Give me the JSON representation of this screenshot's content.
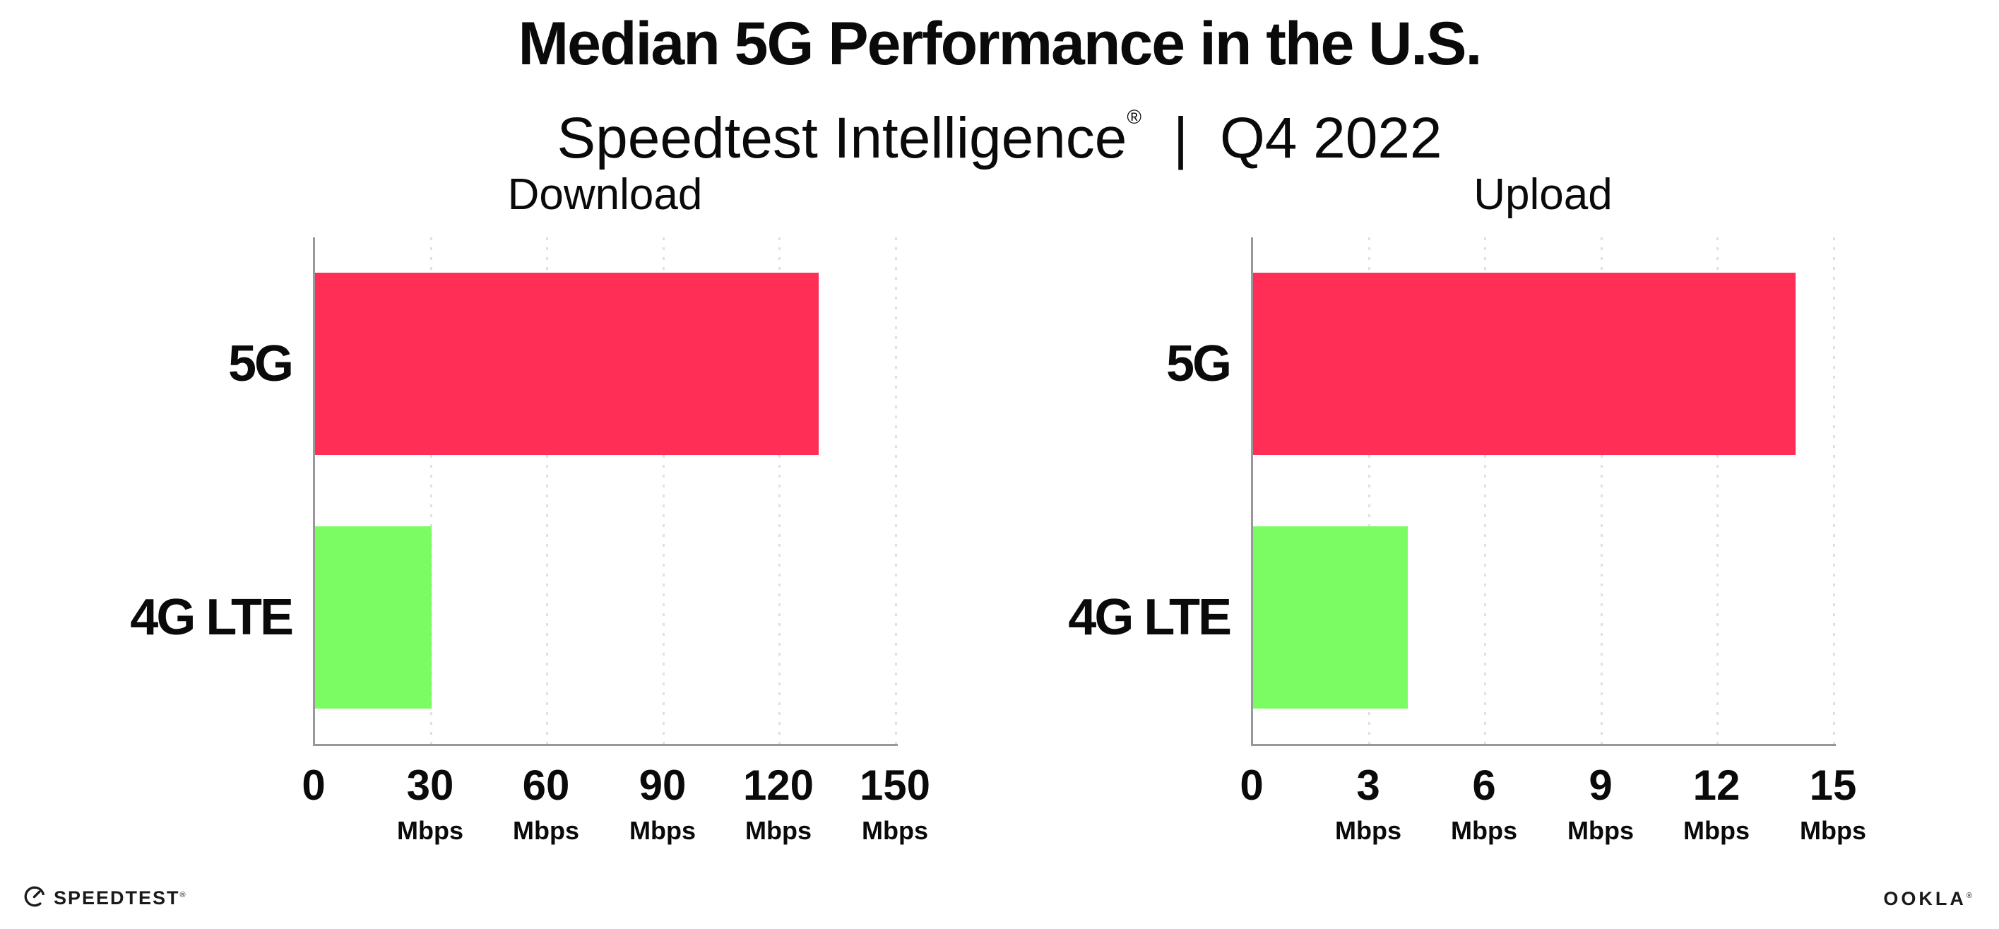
{
  "header": {
    "title": "Median 5G Performance in the U.S.",
    "subtitle_brand": "Speedtest Intelligence",
    "subtitle_reg": "®",
    "subtitle_divider": "|",
    "subtitle_period": "Q4 2022"
  },
  "chart_data": [
    {
      "type": "bar",
      "orientation": "horizontal",
      "title": "Download",
      "categories": [
        "5G",
        "4G LTE"
      ],
      "values": [
        130,
        30
      ],
      "unit": "Mbps",
      "xlim": [
        0,
        150
      ],
      "xticks": [
        0,
        30,
        60,
        90,
        120,
        150
      ],
      "bar_colors": [
        "#FF2E56",
        "#7CFC63"
      ],
      "grid": "vertical-dotted",
      "legend": "none"
    },
    {
      "type": "bar",
      "orientation": "horizontal",
      "title": "Upload",
      "categories": [
        "5G",
        "4G LTE"
      ],
      "values": [
        14,
        4
      ],
      "unit": "Mbps",
      "xlim": [
        0,
        15
      ],
      "xticks": [
        0,
        3,
        6,
        9,
        12,
        15
      ],
      "bar_colors": [
        "#FF2E56",
        "#7CFC63"
      ],
      "grid": "vertical-dotted",
      "legend": "none"
    }
  ],
  "footer": {
    "speedtest_label": "SPEEDTEST",
    "speedtest_reg": "®",
    "ookla_label": "OOKLA",
    "ookla_reg": "®"
  },
  "colors": {
    "bar_5g": "#FF2E56",
    "bar_4g_lte": "#7CFC63",
    "axis_line": "#98989C",
    "gridline": "#DFDFE9",
    "text": "#0A0A0A"
  }
}
